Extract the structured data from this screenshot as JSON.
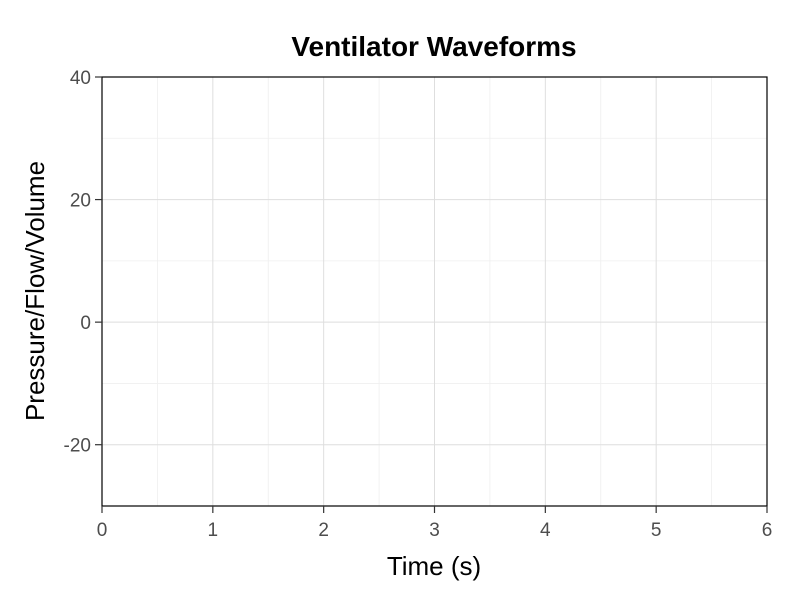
{
  "chart_data": {
    "type": "line",
    "title": "Ventilator Waveforms",
    "xlabel": "Time (s)",
    "ylabel": "Pressure/Flow/Volume",
    "xlim": [
      0,
      6
    ],
    "ylim": [
      -30,
      40
    ],
    "x_ticks": [
      0,
      1,
      2,
      3,
      4,
      5,
      6
    ],
    "x_tick_labels": [
      "0",
      "1",
      "2",
      "3",
      "4",
      "5",
      "6"
    ],
    "y_ticks": [
      -20,
      0,
      20,
      40
    ],
    "y_tick_labels": [
      "-20",
      "0",
      "20",
      "40"
    ],
    "x_minor_ticks": [
      0.5,
      1.5,
      2.5,
      3.5,
      4.5,
      5.5
    ],
    "y_minor_ticks": [
      -30,
      -10,
      10,
      30
    ],
    "series": [],
    "grid": true,
    "legend": "none"
  },
  "colors": {
    "background": "#ffffff",
    "panel_border": "#000000",
    "grid_major": "#dedede",
    "grid_minor": "#efefef",
    "tick_label": "#4d4d4d",
    "title": "#000000"
  }
}
